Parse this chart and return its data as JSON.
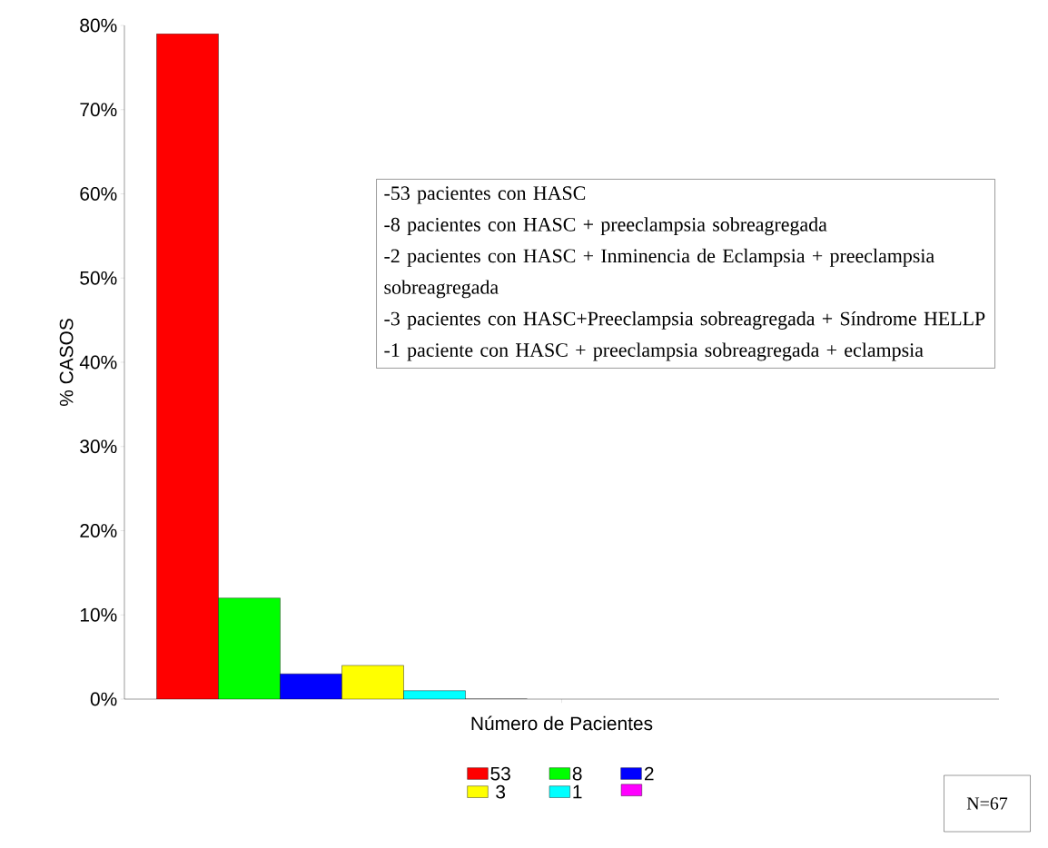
{
  "chart_data": {
    "type": "bar",
    "xlabel": "Número de Pacientes",
    "ylabel": "% CASOS",
    "categories": [
      null
    ],
    "series": [
      {
        "name": "53",
        "color": "#ff0000",
        "values": [
          79
        ]
      },
      {
        "name": "8",
        "color": "#00ff00",
        "values": [
          12
        ]
      },
      {
        "name": "2",
        "color": "#0000ff",
        "values": [
          3
        ]
      },
      {
        "name": "3",
        "color": "#ffff00",
        "values": [
          4
        ]
      },
      {
        "name": "1",
        "color": "#00ffff",
        "values": [
          1
        ]
      },
      {
        "color": "#ff00ff",
        "values": [
          0
        ]
      }
    ],
    "ylim": [
      0,
      80
    ],
    "yticks": [
      {
        "value": 0,
        "label": "0%"
      },
      {
        "value": 10,
        "label": "10%"
      },
      {
        "value": 20,
        "label": "20%"
      },
      {
        "value": 30,
        "label": "30%"
      },
      {
        "value": 40,
        "label": "40%"
      },
      {
        "value": 50,
        "label": "50%"
      },
      {
        "value": 60,
        "label": "60%"
      },
      {
        "value": 70,
        "label": "70%"
      },
      {
        "value": 80,
        "label": "80%"
      }
    ],
    "legend": "bottom",
    "annotations": [
      "-53 pacientes con HASC",
      "-8 pacientes con HASC + preeclampsia sobreagregada",
      "-2 pacientes con HASC + Inminencia de Eclampsia + preeclampsia sobreagregada",
      "-3 pacientes con HASC+Preeclampsia sobreagregada + Síndrome HELLP",
      "-1 paciente con HASC + preeclampsia sobreagregada + eclampsia",
      "N=67"
    ]
  }
}
